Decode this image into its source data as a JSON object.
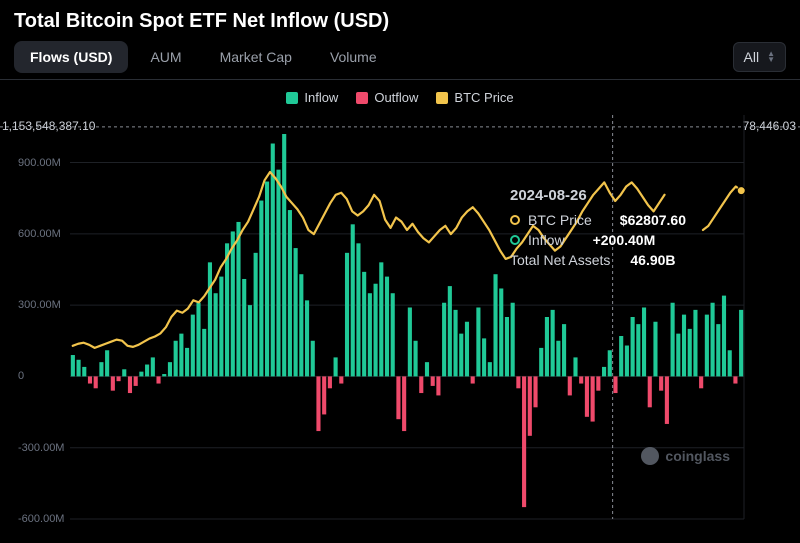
{
  "title": "Total Bitcoin Spot ETF Net Inflow (USD)",
  "tabs": [
    {
      "label": "Flows (USD)",
      "active": true
    },
    {
      "label": "AUM",
      "active": false
    },
    {
      "label": "Market Cap",
      "active": false
    },
    {
      "label": "Volume",
      "active": false
    }
  ],
  "range": {
    "selected": "All"
  },
  "legend": {
    "inflow": "Inflow",
    "outflow": "Outflow",
    "btc": "BTC Price"
  },
  "colors": {
    "background": "#000000",
    "grid": "#1e2126",
    "axis_text": "#6b7280",
    "inflow": "#20c997",
    "outflow": "#ef4a6b",
    "btc": "#f2c44c",
    "callout_line": "#888c94",
    "text": "#cfd3da",
    "text_strong": "#ffffff"
  },
  "chart": {
    "type": "bar+line",
    "y_axis_left": {
      "min": -600,
      "max": 1100,
      "ticks": [
        -600,
        -300,
        0,
        300,
        600,
        900
      ],
      "tick_labels": [
        "-600.00M",
        "-300.00M",
        "0",
        "300.00M",
        "600.00M",
        "900.00M"
      ]
    },
    "callout": {
      "left_value": "1,153,548,387.10",
      "right_value": "78,446.03",
      "y_value": 1050
    },
    "bars": [
      90,
      70,
      40,
      -30,
      -50,
      60,
      110,
      -60,
      -20,
      30,
      -70,
      -40,
      20,
      50,
      80,
      -30,
      10,
      60,
      150,
      180,
      120,
      260,
      310,
      200,
      480,
      350,
      420,
      560,
      610,
      650,
      410,
      300,
      520,
      740,
      820,
      980,
      870,
      1020,
      700,
      540,
      430,
      320,
      150,
      -230,
      -160,
      -50,
      80,
      -30,
      520,
      640,
      560,
      440,
      350,
      390,
      480,
      420,
      350,
      -180,
      -230,
      290,
      150,
      -70,
      60,
      -40,
      -80,
      310,
      380,
      280,
      180,
      230,
      -30,
      290,
      160,
      60,
      430,
      370,
      250,
      310,
      -50,
      -550,
      -250,
      -130,
      120,
      250,
      280,
      150,
      220,
      -80,
      80,
      -30,
      -170,
      -190,
      -60,
      40,
      110,
      -70,
      170,
      130,
      250,
      220,
      290,
      -130,
      230,
      -60,
      -200,
      310,
      180,
      260,
      200,
      280,
      -50,
      260,
      310,
      220,
      340,
      110,
      -30,
      280
    ],
    "btc_price": [
      140,
      150,
      155,
      145,
      130,
      140,
      150,
      160,
      170,
      165,
      140,
      135,
      145,
      160,
      175,
      185,
      200,
      230,
      280,
      310,
      300,
      320,
      360,
      350,
      380,
      420,
      460,
      520,
      560,
      610,
      650,
      700,
      740,
      800,
      860,
      940,
      980,
      950,
      910,
      860,
      830,
      800,
      760,
      700,
      680,
      730,
      780,
      830,
      870,
      880,
      850,
      790,
      770,
      790,
      820,
      870,
      840,
      750,
      710,
      760,
      740,
      700,
      730,
      690,
      660,
      640,
      670,
      700,
      720,
      680,
      710,
      760,
      790,
      810,
      780,
      740,
      700,
      650,
      600,
      560,
      570,
      610,
      640,
      680,
      720,
      700,
      660,
      630,
      600,
      620,
      660,
      700,
      740,
      790,
      830,
      870,
      900,
      930,
      880,
      840,
      870,
      910,
      930,
      900,
      860,
      820,
      790,
      830,
      870
    ],
    "btc_last_segment": [
      700,
      720,
      760,
      800,
      840,
      880,
      910,
      890
    ]
  },
  "tooltip": {
    "date": "2024-08-26",
    "btc_label": "BTC Price",
    "btc_value": "$62807.60",
    "flow_label": "Inflow",
    "flow_value": "+200.40M",
    "tna_label": "Total Net Assets",
    "tna_value": "46.90B"
  },
  "watermark": "coinglass"
}
